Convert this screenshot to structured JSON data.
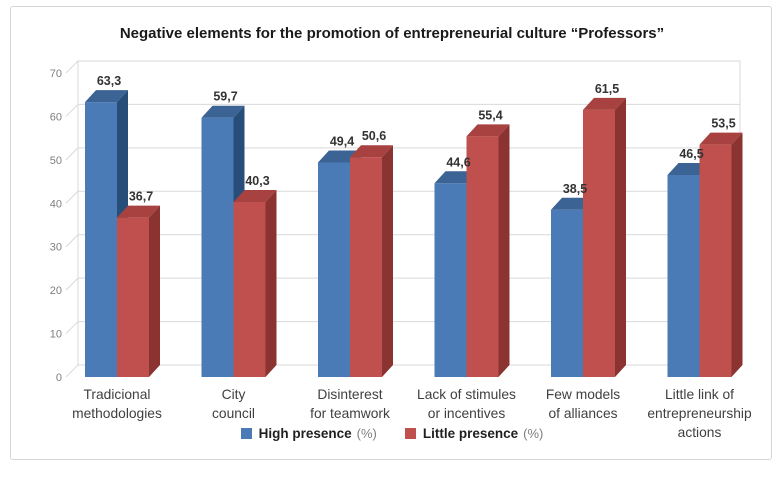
{
  "window": {
    "background": "#ffffff",
    "border_color": "#d6d6d6"
  },
  "chart_data": {
    "type": "bar",
    "style": "3d-clustered-column",
    "title": "Negative elements for the promotion of entrepreneurial culture “Professors”",
    "categories": [
      "Tradicional methodologies",
      "City council",
      "Disinterest for teamwork",
      "Lack of stimules or incentives",
      "Few models of alliances",
      "Little link of entrepreneurship actions"
    ],
    "category_lines": [
      [
        "Tradicional",
        "methodologies"
      ],
      [
        "City",
        "council"
      ],
      [
        "Disinterest",
        "for teamwork"
      ],
      [
        "Lack of stimules",
        "or incentives"
      ],
      [
        "Few models",
        "of alliances"
      ],
      [
        "Little link of",
        "entrepreneurship",
        "actions"
      ]
    ],
    "series": [
      {
        "name": "High presence",
        "unit": "(%)",
        "values": [
          63.3,
          59.7,
          49.4,
          44.6,
          38.5,
          46.5
        ],
        "labels": [
          "63,3",
          "59,7",
          "49,4",
          "44,6",
          "38,5",
          "46,5"
        ],
        "color_front": "#4A7BB7",
        "color_top": "#3B6394",
        "color_side": "#274E79"
      },
      {
        "name": "Little presence",
        "unit": "(%)",
        "values": [
          36.7,
          40.3,
          50.6,
          55.4,
          61.5,
          53.5
        ],
        "labels": [
          "36,7",
          "40,3",
          "50,6",
          "55,4",
          "61,5",
          "53,5"
        ],
        "color_front": "#C0504D",
        "color_top": "#A84240",
        "color_side": "#8A3330"
      }
    ],
    "xlabel": "",
    "ylabel": "",
    "y_axis": {
      "min": 0,
      "max": 70,
      "step": 10,
      "tick_labels": [
        "0",
        "10",
        "20",
        "30",
        "40",
        "50",
        "60",
        "70"
      ]
    },
    "grid": true,
    "legend_position": "bottom",
    "gridline_color": "#d9d9d9",
    "tick_label_color": "#7f7f7f",
    "value_label_color": "#333333",
    "category_label_color": "#404040"
  }
}
